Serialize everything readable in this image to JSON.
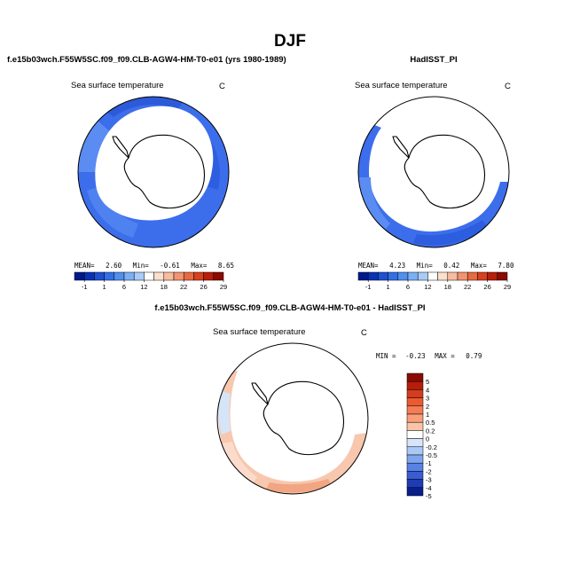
{
  "title": "DJF",
  "panels": [
    {
      "header": "f.e15b03wch.F55W5SC.f09_f09.CLB-AGW4-HM-T0-e01 (yrs 1980-1989)",
      "subtitle": "Sea surface temperature",
      "units": "C",
      "stats": {
        "mean_label": "MEAN=",
        "mean": "2.60",
        "min_label": "Min=",
        "min": "-0.61",
        "max_label": "Max=",
        "max": "8.65"
      }
    },
    {
      "header": "HadISST_PI",
      "subtitle": "Sea surface temperature",
      "units": "C",
      "stats": {
        "mean_label": "MEAN=",
        "mean": "4.23",
        "min_label": "Min=",
        "min": "0.42",
        "max_label": "Max=",
        "max": "7.80"
      }
    },
    {
      "header": "f.e15b03wch.F55W5SC.f09_f09.CLB-AGW4-HM-T0-e01 - HadISST_PI",
      "subtitle": "Sea surface temperature",
      "units": "C",
      "stats": {
        "min_label": "MIN =",
        "min": "-0.23",
        "max_label": "MAX =",
        "max": "0.79"
      }
    }
  ],
  "chart_data": [
    {
      "type": "heatmap",
      "projection": "south-polar-stereographic",
      "variable": "Sea surface temperature",
      "units": "C",
      "colorbar": {
        "orientation": "horizontal",
        "tick_labels": [
          "-1",
          "1",
          "6",
          "12",
          "18",
          "22",
          "26",
          "29"
        ],
        "colors": [
          "#001a8c",
          "#0a32b4",
          "#1e50d2",
          "#3270e6",
          "#5090f0",
          "#7cb0f4",
          "#a8ccf8",
          "#ffffff",
          "#fde0cc",
          "#f8bca0",
          "#f29470",
          "#e86a40",
          "#d8401e",
          "#b81e08",
          "#8c0a00"
        ]
      },
      "field_color_hint": "#3c6eec"
    },
    {
      "type": "heatmap",
      "projection": "south-polar-stereographic",
      "variable": "Sea surface temperature",
      "units": "C",
      "colorbar": {
        "orientation": "horizontal",
        "tick_labels": [
          "-1",
          "1",
          "6",
          "12",
          "18",
          "22",
          "26",
          "29"
        ],
        "colors": [
          "#001a8c",
          "#0a32b4",
          "#1e50d2",
          "#3270e6",
          "#5090f0",
          "#7cb0f4",
          "#a8ccf8",
          "#ffffff",
          "#fde0cc",
          "#f8bca0",
          "#f29470",
          "#e86a40",
          "#d8401e",
          "#b81e08",
          "#8c0a00"
        ]
      },
      "field_color_hint": "#3c6eec"
    },
    {
      "type": "heatmap",
      "projection": "south-polar-stereographic",
      "variable": "Sea surface temperature",
      "units": "C",
      "colorbar": {
        "orientation": "vertical",
        "tick_labels": [
          "5",
          "4",
          "3",
          "2",
          "1",
          "0.5",
          "0.2",
          "0",
          "-0.2",
          "-0.5",
          "-1",
          "-2",
          "-3",
          "-4",
          "-5"
        ],
        "colors": [
          "#8c0a00",
          "#b41e0a",
          "#d63c1e",
          "#ec5a32",
          "#f57c55",
          "#f9a07a",
          "#fcc4a6",
          "#ffffff",
          "#d6e6fa",
          "#aac8f4",
          "#7ea6ee",
          "#5a82e6",
          "#3a5cd4",
          "#1e3cb4",
          "#0a1e8c"
        ]
      },
      "field_color_hint": "#f4b398"
    }
  ]
}
